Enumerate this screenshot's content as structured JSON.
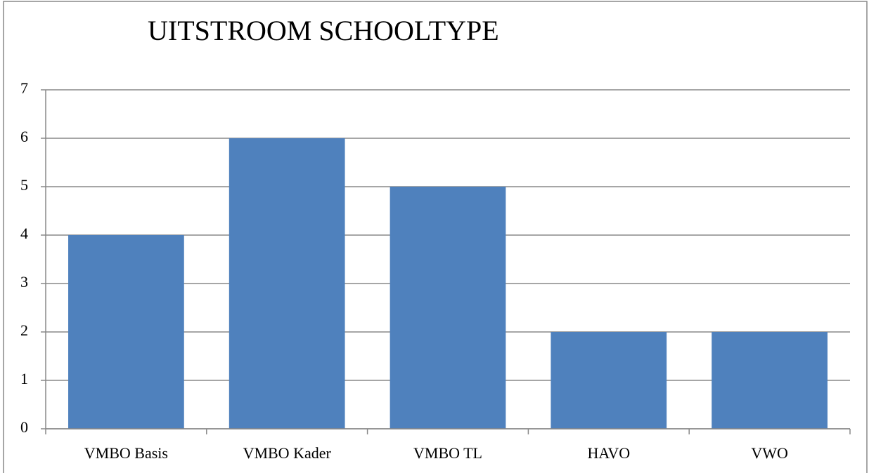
{
  "chart_data": {
    "type": "bar",
    "title": "UITSTROOM SCHOOLTYPE",
    "categories": [
      "VMBO Basis",
      "VMBO Kader",
      "VMBO TL",
      "HAVO",
      "VWO"
    ],
    "values": [
      4,
      6,
      5,
      2,
      2
    ],
    "color": "#4f81bd",
    "ylim": [
      0,
      7
    ],
    "yticks": [
      0,
      1,
      2,
      3,
      4,
      5,
      6,
      7
    ],
    "grid": true
  }
}
